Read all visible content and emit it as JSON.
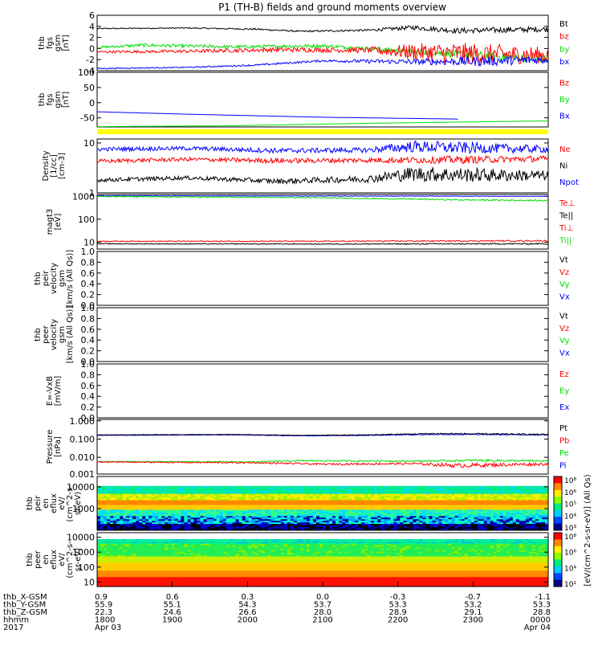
{
  "title": "P1 (TH-B) fields and ground moments overview",
  "colors": {
    "black": "#000000",
    "red": "#ff0000",
    "green": "#00dd00",
    "blue": "#0000ff",
    "yellow": "#ffff00"
  },
  "chart_data": [
    {
      "id": "fgs",
      "type": "line",
      "ylabel": [
        "thb",
        "fgs",
        "gsm",
        "[nT]"
      ],
      "ylim": [
        -4,
        6
      ],
      "yticks": [
        "6",
        "4",
        "2",
        "0",
        "-2",
        "-4"
      ],
      "ytick_values": [
        6,
        4,
        2,
        0,
        -2,
        -4
      ],
      "legend": [
        {
          "label": "Bt",
          "color": "#000000"
        },
        {
          "label": "bz",
          "color": "#ff0000"
        },
        {
          "label": "by",
          "color": "#00dd00"
        },
        {
          "label": "bx",
          "color": "#0000ff"
        }
      ],
      "series": [
        {
          "color": "#000000",
          "x": [
            0,
            0.2,
            0.35,
            0.45,
            0.6,
            0.7,
            0.8,
            1.0
          ],
          "values": [
            3.6,
            3.7,
            3.5,
            3.1,
            3.3,
            3.8,
            3.2,
            3.5
          ],
          "noise": [
            0.1,
            0.1,
            0.15,
            0.15,
            0.2,
            0.4,
            0.5,
            0.5
          ]
        },
        {
          "color": "#00dd00",
          "x": [
            0,
            0.1,
            0.3,
            0.5,
            0.7,
            0.8,
            0.9,
            1.0
          ],
          "values": [
            0.2,
            0.6,
            0.3,
            0.5,
            -0.5,
            -1.0,
            -1.5,
            -2.0
          ],
          "noise": [
            0.2,
            0.3,
            0.3,
            0.3,
            0.4,
            0.7,
            0.8,
            0.8
          ]
        },
        {
          "color": "#ff0000",
          "x": [
            0,
            0.2,
            0.4,
            0.6,
            0.7,
            0.8,
            1.0
          ],
          "values": [
            -0.6,
            -0.5,
            -0.2,
            -0.3,
            -0.6,
            -0.9,
            -1.2
          ],
          "noise": [
            0.2,
            0.3,
            0.4,
            0.5,
            1.5,
            2.0,
            1.5
          ]
        },
        {
          "color": "#0000ff",
          "x": [
            0,
            0.2,
            0.35,
            0.5,
            0.7,
            0.85,
            1.0
          ],
          "values": [
            -3.6,
            -3.4,
            -3.0,
            -2.2,
            -2.4,
            -2.3,
            -2.0
          ],
          "noise": [
            0.1,
            0.1,
            0.15,
            0.2,
            0.5,
            0.9,
            0.7
          ]
        }
      ]
    },
    {
      "id": "fgs_large",
      "type": "line",
      "ylabel": [
        "thb",
        "fgs",
        "gsm",
        "[nT]"
      ],
      "ylim": [
        -80,
        100
      ],
      "yticks": [
        "100",
        "50",
        "0",
        "-50"
      ],
      "ytick_values": [
        100,
        50,
        0,
        -50
      ],
      "legend": [
        {
          "label": "Bz",
          "color": "#ff0000"
        },
        {
          "label": "By",
          "color": "#00dd00"
        },
        {
          "label": "Bx",
          "color": "#0000ff"
        }
      ],
      "series": [
        {
          "color": "#00dd00",
          "x": [
            0,
            0.3,
            0.6,
            1.0
          ],
          "values": [
            -79,
            -76,
            -68,
            -60
          ],
          "noise": [
            0,
            0,
            0,
            0
          ]
        },
        {
          "color": "#0000ff",
          "x": [
            0,
            0.2,
            0.5,
            0.8,
            1.0
          ],
          "values": [
            -30,
            -38,
            -48,
            -54,
            -57
          ],
          "noise": [
            0,
            0,
            0,
            0
          ]
        }
      ]
    },
    {
      "id": "density",
      "type": "line",
      "yscale": "log",
      "ylabel": [
        "Density",
        "[1/cc]",
        "[cm-3]"
      ],
      "ylim": [
        1,
        12
      ],
      "yticks": [
        "10",
        "1"
      ],
      "ytick_values": [
        10,
        1
      ],
      "legend": [
        {
          "label": "Ne",
          "color": "#ff0000"
        },
        {
          "label": "Ni",
          "color": "#000000"
        },
        {
          "label": "Npot",
          "color": "#0000ff"
        }
      ],
      "series": [
        {
          "color": "#0000ff",
          "x": [
            0,
            0.2,
            0.4,
            0.6,
            0.7,
            0.8,
            1.0
          ],
          "values": [
            7.5,
            7.8,
            7.0,
            7.2,
            8.5,
            8.0,
            7.5
          ],
          "noise": [
            0.04,
            0.04,
            0.05,
            0.05,
            0.12,
            0.12,
            0.07
          ]
        },
        {
          "color": "#ff0000",
          "x": [
            0,
            0.2,
            0.4,
            0.6,
            0.8,
            1.0
          ],
          "values": [
            4.3,
            4.7,
            4.4,
            4.5,
            4.6,
            4.8
          ],
          "noise": [
            0.04,
            0.04,
            0.05,
            0.05,
            0.08,
            0.06
          ]
        },
        {
          "color": "#000000",
          "x": [
            0,
            0.2,
            0.4,
            0.6,
            0.7,
            0.8,
            1.0
          ],
          "values": [
            1.8,
            2.0,
            1.7,
            1.9,
            2.4,
            2.3,
            2.2
          ],
          "noise": [
            0.04,
            0.04,
            0.05,
            0.07,
            0.15,
            0.15,
            0.1
          ]
        }
      ]
    },
    {
      "id": "temperature",
      "type": "line",
      "yscale": "log",
      "ylabel": [
        "magt3",
        "[eV]"
      ],
      "ylim": [
        5,
        1200
      ],
      "yticks": [
        "1000",
        "100",
        "10"
      ],
      "ytick_values": [
        1000,
        100,
        10
      ],
      "legend": [
        {
          "label": "Te⊥",
          "color": "#ff0000"
        },
        {
          "label": "Te||",
          "color": "#000000"
        },
        {
          "label": "Ti⊥",
          "color": "#ff0000"
        },
        {
          "label": "Ti||",
          "color": "#00dd00"
        }
      ],
      "series": [
        {
          "color": "#0000ff",
          "x": [
            0,
            1.0
          ],
          "values": [
            1050,
            1000
          ],
          "noise": [
            0.01,
            0.01
          ]
        },
        {
          "color": "#00dd00",
          "x": [
            0,
            0.4,
            0.8,
            1.0
          ],
          "values": [
            980,
            900,
            700,
            650
          ],
          "noise": [
            0.02,
            0.02,
            0.03,
            0.03
          ]
        },
        {
          "color": "#ff0000",
          "x": [
            0,
            0.5,
            1.0
          ],
          "values": [
            11,
            11,
            11.5
          ],
          "noise": [
            0.02,
            0.02,
            0.03
          ]
        },
        {
          "color": "#000000",
          "x": [
            0,
            0.5,
            1.0
          ],
          "values": [
            8.5,
            8.3,
            8.5
          ],
          "noise": [
            0.02,
            0.02,
            0.03
          ]
        }
      ]
    },
    {
      "id": "peir_velocity",
      "type": "line",
      "ylabel": [
        "thb",
        "peir",
        "velocity",
        "gsm",
        "[km/s (All Qs)]"
      ],
      "ylim": [
        0,
        1
      ],
      "yticks": [
        "1.0",
        "0.8",
        "0.6",
        "0.4",
        "0.2",
        "0.0"
      ],
      "ytick_values": [
        1,
        0.8,
        0.6,
        0.4,
        0.2,
        0
      ],
      "legend": [
        {
          "label": "Vt",
          "color": "#000000"
        },
        {
          "label": "Vz",
          "color": "#ff0000"
        },
        {
          "label": "Vy",
          "color": "#00dd00"
        },
        {
          "label": "Vx",
          "color": "#0000ff"
        }
      ],
      "series": []
    },
    {
      "id": "peer_velocity",
      "type": "line",
      "ylabel": [
        "thb",
        "peer",
        "velocity",
        "gsm",
        "[km/s (All Qs)]"
      ],
      "ylim": [
        0,
        1
      ],
      "yticks": [
        "1.0",
        "0.8",
        "0.6",
        "0.4",
        "0.2",
        "0.0"
      ],
      "ytick_values": [
        1,
        0.8,
        0.6,
        0.4,
        0.2,
        0
      ],
      "legend": [
        {
          "label": "Vt",
          "color": "#000000"
        },
        {
          "label": "Vz",
          "color": "#ff0000"
        },
        {
          "label": "Vy",
          "color": "#00dd00"
        },
        {
          "label": "Vx",
          "color": "#0000ff"
        }
      ],
      "series": []
    },
    {
      "id": "efield",
      "type": "line",
      "ylabel": [
        "E=-VxB",
        "[mV/m]"
      ],
      "ylim": [
        0,
        1
      ],
      "yticks": [
        "1.0",
        "0.8",
        "0.6",
        "0.4",
        "0.2",
        "0.0"
      ],
      "ytick_values": [
        1,
        0.8,
        0.6,
        0.4,
        0.2,
        0
      ],
      "legend": [
        {
          "label": "Ez",
          "color": "#ff0000"
        },
        {
          "label": "Ey",
          "color": "#00dd00"
        },
        {
          "label": "Ex",
          "color": "#0000ff"
        }
      ],
      "series": []
    },
    {
      "id": "pressure",
      "type": "line",
      "yscale": "log",
      "ylabel": [
        "Pressure",
        "[nPa]"
      ],
      "ylim": [
        0.0012,
        1.2
      ],
      "yticks": [
        "1.000",
        "0.100",
        "0.010",
        "0.001"
      ],
      "ytick_values": [
        1,
        0.1,
        0.01,
        0.001
      ],
      "legend": [
        {
          "label": "Pt",
          "color": "#000000"
        },
        {
          "label": "Pb",
          "color": "#ff0000"
        },
        {
          "label": "Pe",
          "color": "#00dd00"
        },
        {
          "label": "Pi",
          "color": "#0000ff"
        }
      ],
      "series": [
        {
          "color": "#0000ff",
          "x": [
            0,
            0.3,
            0.45,
            0.6,
            0.75,
            1.0
          ],
          "values": [
            0.16,
            0.17,
            0.15,
            0.16,
            0.18,
            0.17
          ],
          "noise": [
            0.01,
            0.01,
            0.01,
            0.015,
            0.03,
            0.03
          ]
        },
        {
          "color": "#000000",
          "x": [
            0,
            0.3,
            0.45,
            0.6,
            0.75,
            1.0
          ],
          "values": [
            0.17,
            0.18,
            0.16,
            0.17,
            0.2,
            0.18
          ],
          "noise": [
            0.01,
            0.01,
            0.01,
            0.02,
            0.04,
            0.03
          ]
        },
        {
          "color": "#00dd00",
          "x": [
            0,
            0.35,
            0.45,
            0.7,
            0.85,
            1.0
          ],
          "values": [
            0.0058,
            0.0056,
            0.0065,
            0.0062,
            0.0068,
            0.0062
          ],
          "noise": [
            0.03,
            0.03,
            0.04,
            0.04,
            0.06,
            0.05
          ]
        },
        {
          "color": "#ff0000",
          "x": [
            0,
            0.35,
            0.5,
            0.7,
            0.8,
            1.0
          ],
          "values": [
            0.0055,
            0.005,
            0.0042,
            0.0045,
            0.0035,
            0.0043
          ],
          "noise": [
            0.03,
            0.04,
            0.05,
            0.06,
            0.12,
            0.08
          ]
        }
      ]
    },
    {
      "id": "peir_eflux",
      "type": "heatmap",
      "ylabel": [
        "thb",
        "peir",
        "en",
        "eflux",
        "eV/",
        "(cm^2-s-",
        "sr-eV)"
      ],
      "yscale": "log",
      "ylim": [
        100,
        30000
      ],
      "yticks": [
        "10000",
        "1000"
      ],
      "ytick_values": [
        10000,
        1000
      ],
      "description_bands": "ion energy flux spectrogram"
    },
    {
      "id": "peer_eflux",
      "type": "heatmap",
      "ylabel": [
        "thb",
        "peer",
        "en",
        "eflux",
        "eV/",
        "(cm^2-s-",
        "sr-eV)"
      ],
      "yscale": "log",
      "ylim": [
        5,
        20000
      ],
      "yticks": [
        "10000",
        "1000",
        "100",
        "10"
      ],
      "ytick_values": [
        10000,
        1000,
        100,
        10
      ],
      "description_bands": "electron energy flux spectrogram"
    }
  ],
  "colorbar": {
    "label": "[eV/(cm^2-s-sr-eV)] (All Qs)",
    "ion_ticks": [
      "10^8",
      "10^6",
      "10^5",
      "10^4",
      "10^3"
    ],
    "ele_ticks": [
      "10^8",
      "10^6",
      "10^4",
      "10^2"
    ]
  },
  "xaxis": {
    "rows": [
      {
        "label": "thb_X-GSM",
        "values": [
          "0.9",
          "0.6",
          "0.3",
          "0.0",
          "-0.3",
          "-0.7",
          "-1.1"
        ]
      },
      {
        "label": "thb_Y-GSM",
        "values": [
          "55.9",
          "55.1",
          "54.3",
          "53.7",
          "53.3",
          "53.2",
          "53.3"
        ]
      },
      {
        "label": "thb_Z-GSM",
        "values": [
          "22.3",
          "24.6",
          "26.6",
          "28.0",
          "28.9",
          "29.1",
          "28.8"
        ]
      },
      {
        "label": "hhmm",
        "values": [
          "1800",
          "1900",
          "2000",
          "2100",
          "2200",
          "2300",
          "0000"
        ]
      },
      {
        "label": "2017",
        "values": [
          "Apr 03",
          "",
          "",
          "",
          "",
          "",
          "Apr 04"
        ]
      }
    ]
  }
}
